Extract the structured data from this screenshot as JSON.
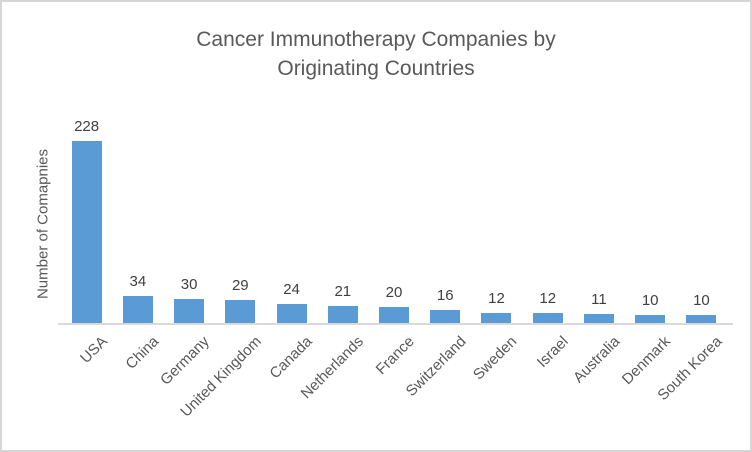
{
  "chart_data": {
    "type": "bar",
    "title": "Cancer Immunotherapy Companies by Originating Countries",
    "title_lines": [
      "Cancer Immunotherapy Companies by",
      "Originating Countries"
    ],
    "xlabel": "",
    "ylabel": "Number of Comapnies",
    "categories": [
      "USA",
      "China",
      "Germany",
      "United Kingdom",
      "Canada",
      "Netherlands",
      "France",
      "Switzerland",
      "Sweden",
      "Israel",
      "Australia",
      "Denmark",
      "South Korea"
    ],
    "values": [
      228,
      34,
      30,
      29,
      24,
      21,
      20,
      16,
      12,
      12,
      11,
      10,
      10
    ],
    "legend_position": "none",
    "grid": false,
    "value_labels_shown": true,
    "x_label_rotation_deg": 45,
    "bar_color": "#5B9BD5",
    "title_color": "#595959",
    "axis_label_color": "#595959",
    "value_label_color": "#404040",
    "axis_line_color": "#D9D9D9",
    "frame_border_color": "#D6D6D6"
  }
}
